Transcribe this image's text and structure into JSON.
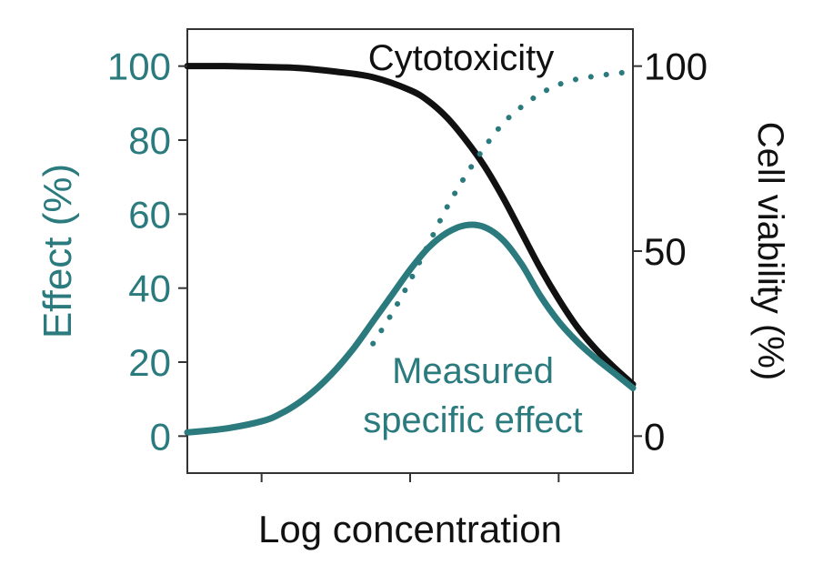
{
  "chart_data": {
    "type": "line",
    "xlabel": "Log concentration",
    "ylabel_left": "Effect (%)",
    "ylabel_right": "Cell viability (%)",
    "ylim_left": [
      -10,
      110
    ],
    "yticks_left": [
      0,
      20,
      40,
      60,
      80,
      100
    ],
    "ylim_right": [
      -10,
      110
    ],
    "yticks_right": [
      0,
      50,
      100
    ],
    "xlim": [
      0,
      6
    ],
    "xticks": [
      1,
      3,
      5
    ],
    "xtick_labels": [
      "",
      "",
      ""
    ],
    "grid": false,
    "annotations": [
      {
        "text": "Cytotoxicity",
        "color": "#111111"
      },
      {
        "text": "Measured",
        "color": "#2a7a7e"
      },
      {
        "text": "specific effect",
        "color": "#2a7a7e"
      }
    ],
    "series": [
      {
        "id": "cytotoxicity",
        "axis": "right",
        "style": "solid",
        "color": "#111111",
        "x": [
          0,
          0.5,
          1,
          1.5,
          2,
          2.5,
          3,
          3.25,
          3.5,
          3.75,
          4,
          4.25,
          4.5,
          4.75,
          5,
          5.25,
          5.5,
          5.75,
          6
        ],
        "y": [
          100,
          100,
          99.8,
          99.5,
          98.5,
          97,
          93.5,
          90.5,
          86,
          80,
          73,
          64.5,
          55,
          45.5,
          37,
          29.5,
          23.5,
          18.5,
          14
        ]
      },
      {
        "id": "specific-effect",
        "axis": "left",
        "style": "dotted",
        "color": "#2a7a7e",
        "x": [
          2.5,
          2.75,
          3,
          3.25,
          3.5,
          3.75,
          4,
          4.25,
          4.5,
          4.75,
          5,
          5.25,
          5.5,
          5.75,
          6
        ],
        "y": [
          25,
          33,
          42,
          52,
          62,
          70.5,
          78,
          84.5,
          89,
          92.5,
          95,
          96.5,
          97.3,
          98,
          98.5
        ]
      },
      {
        "id": "measured-specific-effect",
        "axis": "left",
        "style": "solid",
        "color": "#2a7a7e",
        "x": [
          0,
          0.5,
          1,
          1.25,
          1.5,
          1.75,
          2,
          2.25,
          2.5,
          2.75,
          3,
          3.25,
          3.5,
          3.75,
          4,
          4.25,
          4.5,
          4.75,
          5,
          5.25,
          5.5,
          5.75,
          6
        ],
        "y": [
          1,
          2,
          4,
          6,
          9,
          13,
          18,
          24,
          31,
          38,
          45,
          51,
          55,
          57,
          56.5,
          53,
          46.5,
          38,
          31,
          25.5,
          21,
          17,
          13
        ]
      }
    ]
  }
}
